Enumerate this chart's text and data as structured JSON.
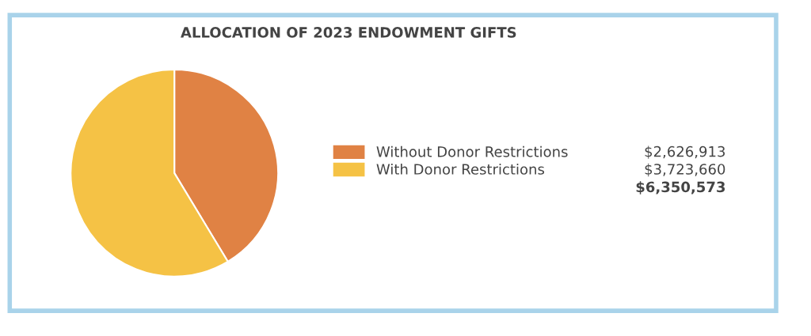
{
  "chart_data": {
    "type": "pie",
    "title": "ALLOCATION OF 2023 ENDOWMENT GIFTS",
    "categories": [
      "Without Donor Restrictions",
      "With Donor Restrictions"
    ],
    "values": [
      2626913,
      3723660
    ],
    "colors": [
      "#e08244",
      "#f5c245"
    ],
    "value_labels": [
      "$2,626,913",
      "$3,723,660"
    ],
    "annotations": [
      "$6,350,573"
    ],
    "legend": "right"
  }
}
